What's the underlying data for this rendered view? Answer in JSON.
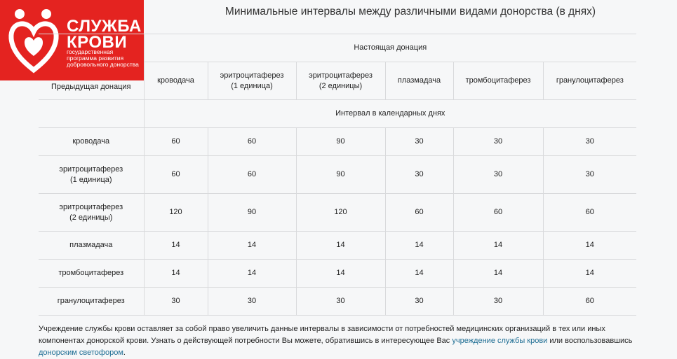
{
  "logo": {
    "name": [
      "СЛУЖБА",
      "КРОВИ"
    ],
    "tagline": [
      "государственная",
      "программа развития",
      "добровольного донорства"
    ]
  },
  "title": "Минимальные интервалы между различными видами донорства (в днях)",
  "table": {
    "current_header": "Настоящая донация",
    "previous_header": "Предыдущая донация",
    "columns": [
      [
        "кроводача"
      ],
      [
        "эритроцитаферез",
        "(1 единица)"
      ],
      [
        "эритроцитаферез",
        "(2 единицы)"
      ],
      [
        "плазмадача"
      ],
      [
        "тромбоцитаферез"
      ],
      [
        "гранулоцитаферез"
      ]
    ],
    "interval_header": "Интервал в календарных днях",
    "rows": [
      {
        "label": [
          "кроводача"
        ],
        "values": [
          "60",
          "60",
          "90",
          "30",
          "30",
          "30"
        ]
      },
      {
        "label": [
          "эритроцитаферез",
          "(1 единица)"
        ],
        "values": [
          "60",
          "60",
          "90",
          "30",
          "30",
          "30"
        ]
      },
      {
        "label": [
          "эритроцитаферез",
          "(2 единицы)"
        ],
        "values": [
          "120",
          "90",
          "120",
          "60",
          "60",
          "60"
        ]
      },
      {
        "label": [
          "плазмадача"
        ],
        "values": [
          "14",
          "14",
          "14",
          "14",
          "14",
          "14"
        ]
      },
      {
        "label": [
          "тромбоцитаферез"
        ],
        "values": [
          "14",
          "14",
          "14",
          "14",
          "14",
          "14"
        ]
      },
      {
        "label": [
          "гранулоцитаферез"
        ],
        "values": [
          "30",
          "30",
          "30",
          "30",
          "30",
          "60"
        ]
      }
    ]
  },
  "footnote": {
    "parts": [
      {
        "text": "Учреждение службы крови оставляет за собой право увеличить данные интервалы в зависимости от потребностей медицинских организаций в тех или иных компонентах донорской крови. Узнать о действующей потребности Вы можете, обратившись в интересующее Вас "
      },
      {
        "text": "учреждение службы крови",
        "link": true
      },
      {
        "text": " или воспользовавшись "
      },
      {
        "text": "донорским светофором",
        "link": true
      },
      {
        "text": "."
      }
    ]
  }
}
